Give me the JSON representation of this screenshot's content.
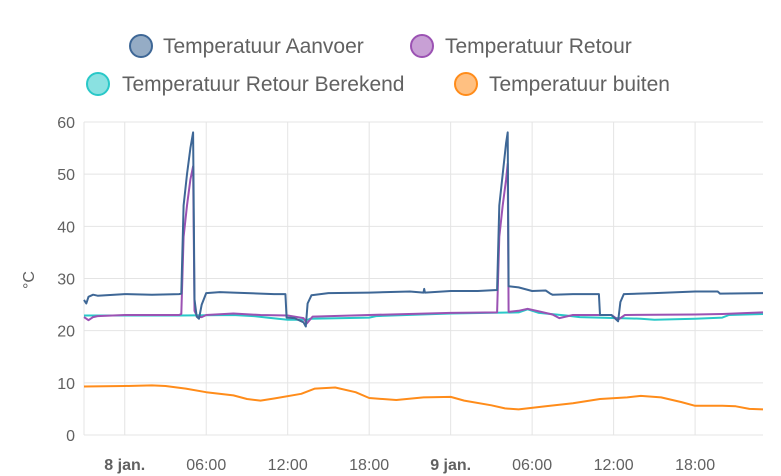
{
  "chart_data": {
    "type": "line",
    "title": "",
    "xlabel": "",
    "ylabel": "°C",
    "ylim": [
      0,
      60
    ],
    "yticks": [
      0,
      10,
      20,
      30,
      40,
      50,
      60
    ],
    "xlim": [
      "2024-01-07 21:00",
      "2024-01-09 23:00"
    ],
    "xticks": [
      {
        "label": "8 jan.",
        "time": "2024-01-08 00:00",
        "bold": true
      },
      {
        "label": "06:00",
        "time": "2024-01-08 06:00",
        "bold": false
      },
      {
        "label": "12:00",
        "time": "2024-01-08 12:00",
        "bold": false
      },
      {
        "label": "18:00",
        "time": "2024-01-08 18:00",
        "bold": false
      },
      {
        "label": "9 jan.",
        "time": "2024-01-09 00:00",
        "bold": true
      },
      {
        "label": "06:00",
        "time": "2024-01-09 06:00",
        "bold": false
      },
      {
        "label": "12:00",
        "time": "2024-01-09 12:00",
        "bold": false
      },
      {
        "label": "18:00",
        "time": "2024-01-09 18:00",
        "bold": false
      }
    ],
    "grid": true,
    "legend_position": "top",
    "series": [
      {
        "name": "Temperatuur Aanvoer",
        "color": "#3e6796",
        "points": [
          [
            "2024-01-07 21:00",
            25.9
          ],
          [
            "2024-01-07 21:10",
            25.2
          ],
          [
            "2024-01-07 21:20",
            26.5
          ],
          [
            "2024-01-07 21:40",
            26.9
          ],
          [
            "2024-01-07 22:00",
            26.7
          ],
          [
            "2024-01-08 00:00",
            27.0
          ],
          [
            "2024-01-08 02:00",
            26.9
          ],
          [
            "2024-01-08 04:00",
            27.0
          ],
          [
            "2024-01-08 04:10",
            27.1
          ],
          [
            "2024-01-08 04:20",
            44.0
          ],
          [
            "2024-01-08 04:35",
            50.0
          ],
          [
            "2024-01-08 04:50",
            55.0
          ],
          [
            "2024-01-08 05:02",
            58.0
          ],
          [
            "2024-01-08 05:08",
            26.0
          ],
          [
            "2024-01-08 05:18",
            22.7
          ],
          [
            "2024-01-08 05:28",
            22.3
          ],
          [
            "2024-01-08 05:40",
            25.0
          ],
          [
            "2024-01-08 06:00",
            27.2
          ],
          [
            "2024-01-08 07:00",
            27.4
          ],
          [
            "2024-01-08 08:00",
            27.3
          ],
          [
            "2024-01-08 10:00",
            27.1
          ],
          [
            "2024-01-08 11:00",
            27.0
          ],
          [
            "2024-01-08 11:50",
            27.0
          ],
          [
            "2024-01-08 11:55",
            22.5
          ],
          [
            "2024-01-08 12:30",
            22.4
          ],
          [
            "2024-01-08 13:10",
            21.6
          ],
          [
            "2024-01-08 13:20",
            20.8
          ],
          [
            "2024-01-08 13:28",
            25.2
          ],
          [
            "2024-01-08 13:45",
            26.8
          ],
          [
            "2024-01-08 15:00",
            27.2
          ],
          [
            "2024-01-08 18:00",
            27.3
          ],
          [
            "2024-01-08 21:00",
            27.5
          ],
          [
            "2024-01-08 22:00",
            27.3
          ],
          [
            "2024-01-08 22:03",
            28.0
          ],
          [
            "2024-01-08 22:06",
            27.3
          ],
          [
            "2024-01-09 00:00",
            27.6
          ],
          [
            "2024-01-09 02:00",
            27.6
          ],
          [
            "2024-01-09 03:25",
            27.8
          ],
          [
            "2024-01-09 03:35",
            44.0
          ],
          [
            "2024-01-09 03:50",
            50.0
          ],
          [
            "2024-01-09 04:05",
            56.0
          ],
          [
            "2024-01-09 04:12",
            58.0
          ],
          [
            "2024-01-09 04:16",
            28.5
          ],
          [
            "2024-01-09 05:00",
            28.3
          ],
          [
            "2024-01-09 06:00",
            27.6
          ],
          [
            "2024-01-09 07:00",
            27.7
          ],
          [
            "2024-01-09 07:20",
            27.1
          ],
          [
            "2024-01-09 07:30",
            26.9
          ],
          [
            "2024-01-09 09:00",
            27.0
          ],
          [
            "2024-01-09 10:55",
            27.0
          ],
          [
            "2024-01-09 11:00",
            23.0
          ],
          [
            "2024-01-09 11:50",
            23.0
          ],
          [
            "2024-01-09 12:20",
            21.8
          ],
          [
            "2024-01-09 12:30",
            25.5
          ],
          [
            "2024-01-09 12:45",
            27.0
          ],
          [
            "2024-01-09 15:00",
            27.2
          ],
          [
            "2024-01-09 18:00",
            27.5
          ],
          [
            "2024-01-09 19:40",
            27.5
          ],
          [
            "2024-01-09 19:50",
            27.1
          ],
          [
            "2024-01-09 23:00",
            27.2
          ]
        ]
      },
      {
        "name": "Temperatuur Retour",
        "color": "#9b52b3",
        "points": [
          [
            "2024-01-07 21:00",
            22.6
          ],
          [
            "2024-01-07 21:20",
            22.0
          ],
          [
            "2024-01-07 21:40",
            22.6
          ],
          [
            "2024-01-07 22:00",
            22.8
          ],
          [
            "2024-01-08 00:00",
            23.0
          ],
          [
            "2024-01-08 04:00",
            23.0
          ],
          [
            "2024-01-08 04:10",
            23.2
          ],
          [
            "2024-01-08 04:20",
            38.0
          ],
          [
            "2024-01-08 04:35",
            44.0
          ],
          [
            "2024-01-08 04:50",
            49.0
          ],
          [
            "2024-01-08 05:02",
            51.5
          ],
          [
            "2024-01-08 05:08",
            23.8
          ],
          [
            "2024-01-08 05:20",
            22.7
          ],
          [
            "2024-01-08 05:40",
            22.6
          ],
          [
            "2024-01-08 06:00",
            23.0
          ],
          [
            "2024-01-08 08:00",
            23.3
          ],
          [
            "2024-01-08 10:00",
            23.0
          ],
          [
            "2024-01-08 12:00",
            22.9
          ],
          [
            "2024-01-08 13:10",
            22.4
          ],
          [
            "2024-01-08 13:25",
            21.4
          ],
          [
            "2024-01-08 13:50",
            22.7
          ],
          [
            "2024-01-08 18:00",
            23.0
          ],
          [
            "2024-01-09 00:00",
            23.4
          ],
          [
            "2024-01-09 03:25",
            23.5
          ],
          [
            "2024-01-09 03:35",
            38.0
          ],
          [
            "2024-01-09 03:50",
            44.0
          ],
          [
            "2024-01-09 04:05",
            49.0
          ],
          [
            "2024-01-09 04:12",
            52.0
          ],
          [
            "2024-01-09 04:16",
            23.6
          ],
          [
            "2024-01-09 05:00",
            23.8
          ],
          [
            "2024-01-09 05:40",
            24.2
          ],
          [
            "2024-01-09 06:30",
            23.7
          ],
          [
            "2024-01-09 07:30",
            23.1
          ],
          [
            "2024-01-09 08:00",
            22.4
          ],
          [
            "2024-01-09 09:00",
            23.0
          ],
          [
            "2024-01-09 11:50",
            23.0
          ],
          [
            "2024-01-09 12:20",
            22.1
          ],
          [
            "2024-01-09 12:50",
            23.0
          ],
          [
            "2024-01-09 18:00",
            23.1
          ],
          [
            "2024-01-09 20:00",
            23.2
          ],
          [
            "2024-01-09 23:00",
            23.5
          ]
        ]
      },
      {
        "name": "Temperatuur Retour Berekend",
        "color": "#29c8c8",
        "points": [
          [
            "2024-01-07 21:00",
            22.9
          ],
          [
            "2024-01-08 00:00",
            22.9
          ],
          [
            "2024-01-08 04:00",
            22.9
          ],
          [
            "2024-01-08 08:00",
            23.0
          ],
          [
            "2024-01-08 09:30",
            22.8
          ],
          [
            "2024-01-08 10:30",
            22.5
          ],
          [
            "2024-01-08 12:00",
            22.1
          ],
          [
            "2024-01-08 13:30",
            22.1
          ],
          [
            "2024-01-08 13:40",
            22.3
          ],
          [
            "2024-01-08 18:00",
            22.5
          ],
          [
            "2024-01-08 18:30",
            22.8
          ],
          [
            "2024-01-09 00:00",
            23.3
          ],
          [
            "2024-01-09 05:00",
            23.5
          ],
          [
            "2024-01-09 05:40",
            24.1
          ],
          [
            "2024-01-09 06:30",
            23.4
          ],
          [
            "2024-01-09 08:30",
            22.9
          ],
          [
            "2024-01-09 09:30",
            22.6
          ],
          [
            "2024-01-09 14:00",
            22.3
          ],
          [
            "2024-01-09 15:00",
            22.1
          ],
          [
            "2024-01-09 18:00",
            22.3
          ],
          [
            "2024-01-09 20:00",
            22.5
          ],
          [
            "2024-01-09 20:30",
            23.0
          ],
          [
            "2024-01-09 23:00",
            23.2
          ]
        ]
      },
      {
        "name": "Temperatuur buiten",
        "color": "#ff8c1a",
        "points": [
          [
            "2024-01-07 21:00",
            9.3
          ],
          [
            "2024-01-08 00:00",
            9.4
          ],
          [
            "2024-01-08 02:00",
            9.5
          ],
          [
            "2024-01-08 03:00",
            9.4
          ],
          [
            "2024-01-08 04:30",
            8.9
          ],
          [
            "2024-01-08 06:00",
            8.2
          ],
          [
            "2024-01-08 08:00",
            7.6
          ],
          [
            "2024-01-08 09:00",
            6.9
          ],
          [
            "2024-01-08 10:00",
            6.6
          ],
          [
            "2024-01-08 11:00",
            7.0
          ],
          [
            "2024-01-08 13:00",
            7.9
          ],
          [
            "2024-01-08 14:00",
            8.9
          ],
          [
            "2024-01-08 15:30",
            9.1
          ],
          [
            "2024-01-08 17:00",
            8.2
          ],
          [
            "2024-01-08 18:00",
            7.1
          ],
          [
            "2024-01-08 20:00",
            6.7
          ],
          [
            "2024-01-08 22:00",
            7.2
          ],
          [
            "2024-01-09 00:00",
            7.3
          ],
          [
            "2024-01-09 01:00",
            6.6
          ],
          [
            "2024-01-09 03:00",
            5.7
          ],
          [
            "2024-01-09 04:00",
            5.1
          ],
          [
            "2024-01-09 05:00",
            4.9
          ],
          [
            "2024-01-09 07:00",
            5.5
          ],
          [
            "2024-01-09 09:00",
            6.1
          ],
          [
            "2024-01-09 11:00",
            6.9
          ],
          [
            "2024-01-09 13:00",
            7.2
          ],
          [
            "2024-01-09 14:00",
            7.5
          ],
          [
            "2024-01-09 15:30",
            7.2
          ],
          [
            "2024-01-09 17:00",
            6.3
          ],
          [
            "2024-01-09 18:00",
            5.6
          ],
          [
            "2024-01-09 20:00",
            5.6
          ],
          [
            "2024-01-09 21:00",
            5.5
          ],
          [
            "2024-01-09 22:00",
            5.0
          ],
          [
            "2024-01-09 23:00",
            4.9
          ]
        ]
      }
    ]
  }
}
